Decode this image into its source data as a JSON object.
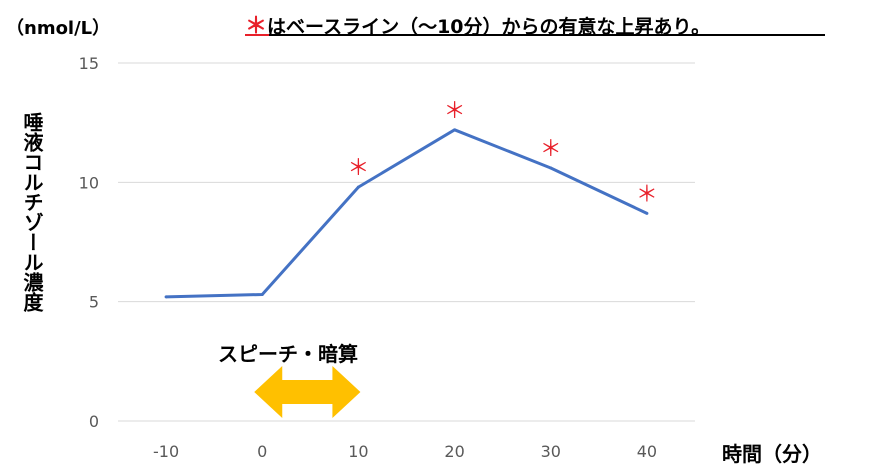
{
  "title": {
    "marker": "＊",
    "text": "はベースライン（～10分）からの有意な上昇あり。"
  },
  "unit_label": "（nmol/L）",
  "ylabel": "唾液コルチゾール濃度",
  "xlabel": "時間（分）",
  "stimulus": {
    "label": "スピーチ・暗算",
    "x_range": [
      0,
      10
    ],
    "color": "#ffc000"
  },
  "chart_data": {
    "type": "line",
    "x": [
      -10,
      0,
      10,
      20,
      30,
      40
    ],
    "x_tick_labels": [
      "-10",
      "0",
      "10",
      "20",
      "30",
      "40"
    ],
    "y_ticks": [
      0,
      5,
      10,
      15
    ],
    "y_tick_labels": [
      "0",
      "5",
      "10",
      "15"
    ],
    "ylim": [
      0,
      15
    ],
    "series": [
      {
        "values": [
          5.2,
          5.3,
          9.8,
          12.2,
          10.6,
          8.7
        ],
        "color": "#4472c4"
      }
    ],
    "significance_marker": "＊",
    "significant_x": [
      10,
      20,
      30,
      40
    ],
    "marker_color": "#e8202a",
    "grid": "horizontal"
  }
}
